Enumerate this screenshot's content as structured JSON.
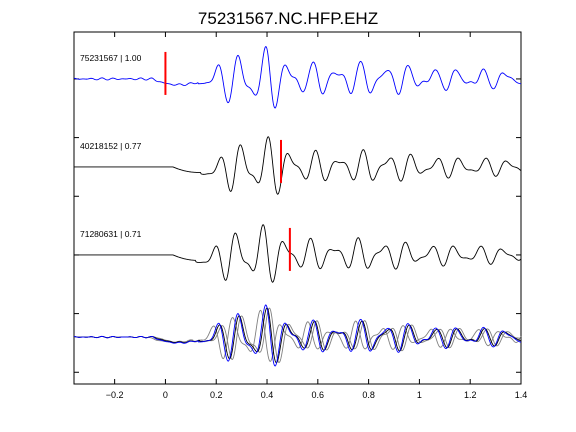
{
  "chart_data": {
    "type": "line",
    "title": "75231567.NC.HFP.EHZ",
    "xlabel": "",
    "ylabel": "",
    "xlim": [
      -0.36,
      1.4
    ],
    "xticks": [
      -0.2,
      0,
      0.2,
      0.4,
      0.6,
      0.8,
      1,
      1.2,
      1.4
    ],
    "xtick_labels": [
      "−0.2",
      "0",
      "0.2",
      "0.4",
      "0.6",
      "0.8",
      "1",
      "1.2",
      "1.4"
    ],
    "ylim": [
      -5.2,
      0.8
    ],
    "yticks": [
      -5,
      -4,
      -3,
      -2,
      -1,
      0
    ],
    "grid": false,
    "colors": {
      "primary": "#0000ff",
      "correlated": "#000000",
      "overlay_gray": "#808080",
      "pick": "#ff0000"
    },
    "phase_envelope": [
      {
        "t": 0.13,
        "a": 0.1
      },
      {
        "t": 0.18,
        "a": 0.3
      },
      {
        "t": 0.25,
        "a": 0.7
      },
      {
        "t": 0.33,
        "a": 1.0
      },
      {
        "t": 0.4,
        "a": 0.95
      },
      {
        "t": 0.5,
        "a": 0.55
      },
      {
        "t": 0.7,
        "a": 0.4
      },
      {
        "t": 0.8,
        "a": 0.55
      },
      {
        "t": 1.0,
        "a": 0.35
      },
      {
        "t": 1.4,
        "a": 0.25
      }
    ],
    "series": [
      {
        "label": "75231567 | 1.00",
        "offset": 0,
        "color": "#0000ff",
        "onset": -0.05,
        "pre_noise": 0.03,
        "shift": 0.0,
        "gain": 1.0,
        "pick_time": 0.0,
        "pick_color": "#ff0000"
      },
      {
        "label": "40218152 | 0.77",
        "offset": -1.5,
        "color": "#000000",
        "onset": 0.02,
        "pre_noise": 0.0,
        "shift": 0.01,
        "gain": 0.95,
        "pick_time": 0.455,
        "pick_color": "#ff0000"
      },
      {
        "label": "71280631 | 0.71",
        "offset": -3.0,
        "color": "#000000",
        "onset": 0.04,
        "pre_noise": 0.0,
        "shift": -0.01,
        "gain": 0.95,
        "pick_time": 0.49,
        "pick_color": "#ff0000"
      }
    ],
    "overlay": {
      "offset": -4.4,
      "members": [
        {
          "color": "#808080",
          "shift": 0.015,
          "gain": 0.9
        },
        {
          "color": "#808080",
          "shift": -0.02,
          "gain": 0.85
        },
        {
          "color": "#000000",
          "shift": 0.005,
          "gain": 0.9
        },
        {
          "color": "#0000ff",
          "shift": 0.0,
          "gain": 1.0
        }
      ]
    }
  }
}
